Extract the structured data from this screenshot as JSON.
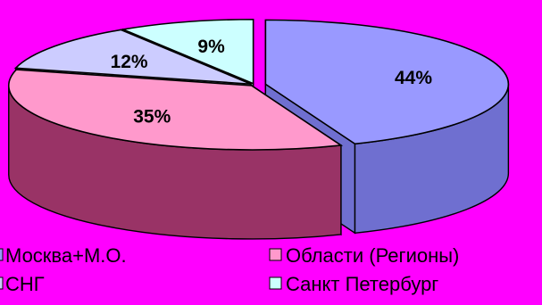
{
  "chart_data": {
    "type": "pie",
    "style": "3d-exploded",
    "background": "#ff00ff",
    "slices": [
      {
        "label": "Москва+М.О.",
        "value": 44,
        "data_label": "44%",
        "color": "#9999ff",
        "side_color": "#6f6fd0"
      },
      {
        "label": "Области (Регионы)",
        "value": 35,
        "data_label": "35%",
        "color": "#ff99cc",
        "side_color": "#993366"
      },
      {
        "label": "СНГ",
        "value": 12,
        "data_label": "12%",
        "color": "#ccccff",
        "side_color": "#a3a3d6"
      },
      {
        "label": "Санкт Петербург",
        "value": 9,
        "data_label": "9%",
        "color": "#ccffff",
        "side_color": "#99cccc"
      }
    ],
    "legend": {
      "placement": "bottom",
      "columns": [
        [
          "Москва+М.О.",
          "СНГ"
        ],
        [
          "Области (Регионы)",
          "Санкт Петербург"
        ]
      ]
    }
  }
}
